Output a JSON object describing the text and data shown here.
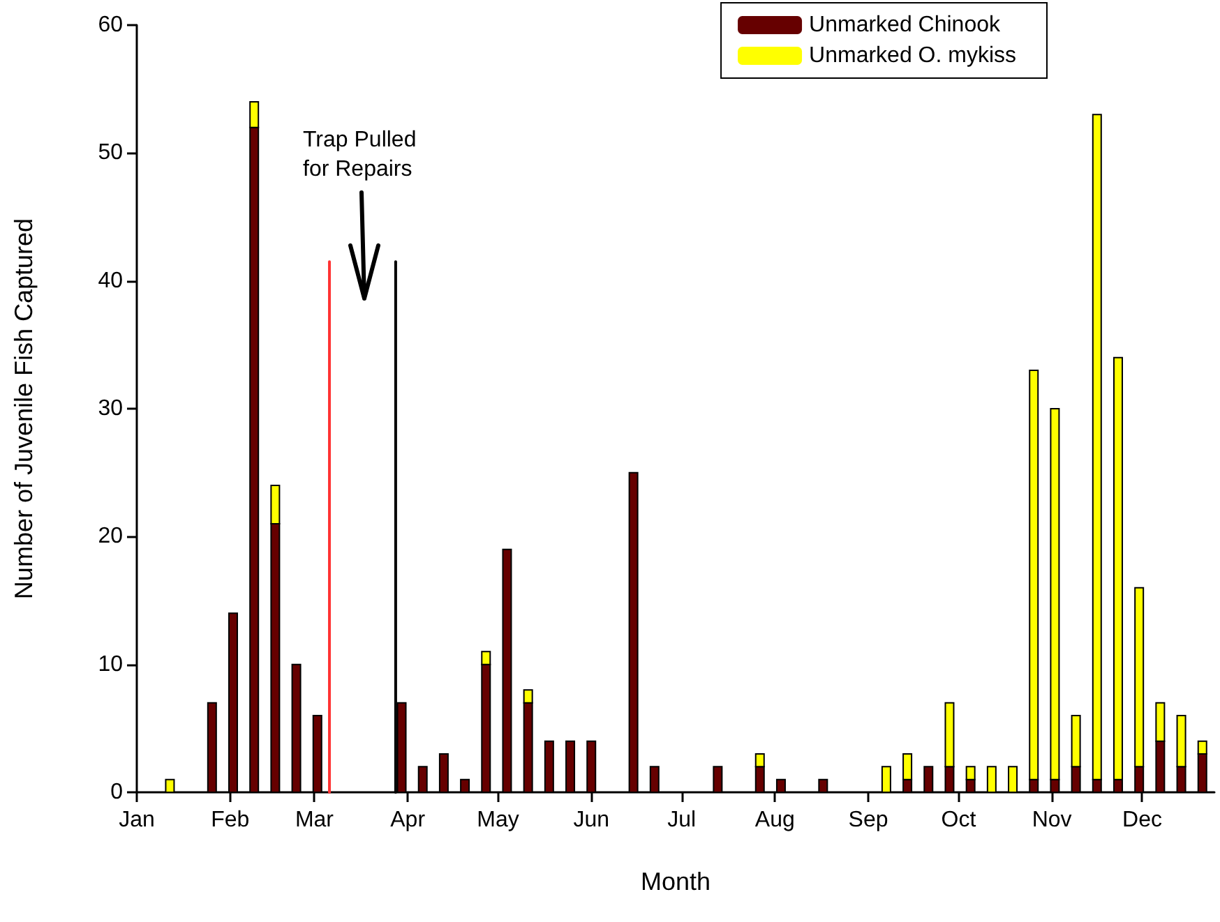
{
  "chart_data": {
    "type": "bar",
    "stacked": true,
    "xlabel": "Month",
    "ylabel": "Number of Juvenile Fish Captured",
    "x": [
      "--01-12",
      "--01-26",
      "--02-02",
      "--02-09",
      "--02-16",
      "--02-23",
      "--03-02",
      "--03-30",
      "--04-06",
      "--04-13",
      "--04-20",
      "--04-27",
      "--05-04",
      "--05-11",
      "--05-18",
      "--05-25",
      "--06-01",
      "--06-15",
      "--06-22",
      "--07-13",
      "--07-27",
      "--08-03",
      "--08-17",
      "--09-07",
      "--09-14",
      "--09-21",
      "--09-28",
      "--10-05",
      "--10-12",
      "--10-19",
      "--10-26",
      "--11-02",
      "--11-09",
      "--11-16",
      "--11-23",
      "--11-30",
      "--12-07",
      "--12-14",
      "--12-21"
    ],
    "series": [
      {
        "name": "Unmarked Chinook",
        "color": "#660000",
        "values": [
          0,
          7,
          14,
          52,
          21,
          10,
          6,
          7,
          2,
          3,
          1,
          10,
          19,
          7,
          4,
          4,
          4,
          25,
          2,
          2,
          2,
          1,
          1,
          0,
          1,
          2,
          2,
          1,
          0,
          0,
          1,
          1,
          2,
          1,
          1,
          2,
          4,
          2,
          3
        ]
      },
      {
        "name": "Unmarked O. mykiss",
        "color": "#ffff00",
        "values": [
          1,
          0,
          0,
          2,
          3,
          0,
          0,
          0,
          0,
          0,
          0,
          1,
          0,
          1,
          0,
          0,
          0,
          0,
          0,
          0,
          1,
          0,
          0,
          2,
          2,
          0,
          5,
          1,
          2,
          2,
          32,
          29,
          4,
          52,
          33,
          14,
          3,
          4,
          1
        ]
      },
      {
        "type": "line",
        "color": "#ff3333",
        "x": [
          "--03-06",
          "--03-06"
        ],
        "values": [
          0,
          41.5
        ]
      },
      {
        "type": "line",
        "color": "#000000",
        "x": [
          "--03-28",
          "--03-28"
        ],
        "values": [
          0,
          41.5
        ]
      }
    ],
    "marker": "none",
    "xlim": [
      "--01-01",
      "--12-25"
    ],
    "xticks": [
      {
        "value": "--01-01",
        "label": "Jan"
      },
      {
        "value": "--02-01",
        "label": "Feb"
      },
      {
        "value": "--03-01",
        "label": "Mar"
      },
      {
        "value": "--04-01",
        "label": "Apr"
      },
      {
        "value": "--05-01",
        "label": "May"
      },
      {
        "value": "--06-01",
        "label": "Jun"
      },
      {
        "value": "--07-01",
        "label": "Jul"
      },
      {
        "value": "--08-01",
        "label": "Aug"
      },
      {
        "value": "--09-01",
        "label": "Sep"
      },
      {
        "value": "--10-01",
        "label": "Oct"
      },
      {
        "value": "--11-01",
        "label": "Nov"
      },
      {
        "value": "--12-01",
        "label": "Dec"
      }
    ],
    "ylim": [
      0,
      60
    ],
    "yticks": [
      0,
      10,
      20,
      30,
      40,
      50,
      60
    ],
    "grid": false,
    "legend": "top right",
    "annotations": [
      "Trap Pulled for Repairs"
    ]
  }
}
